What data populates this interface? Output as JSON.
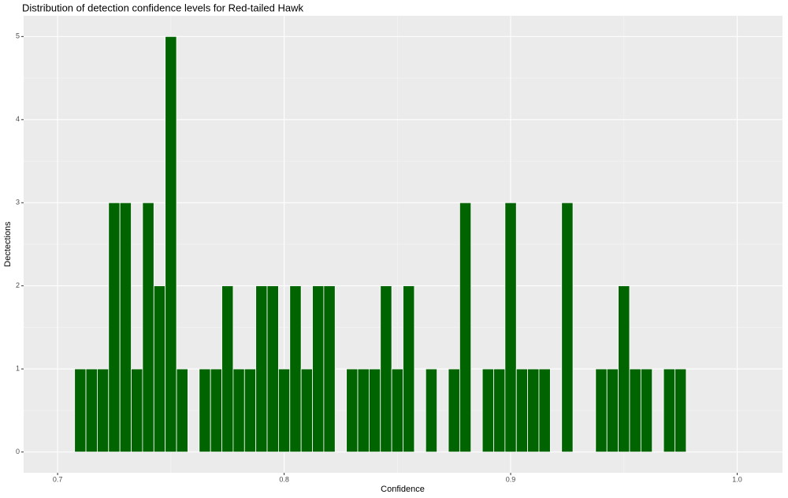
{
  "chart_data": {
    "type": "histogram",
    "title": "Distribution of detection confidence levels for Red-tailed Hawk",
    "x_label": "Confidence",
    "y_label": "Dectections",
    "bins": [
      0.7075,
      0.7125,
      0.7175,
      0.7225,
      0.7275,
      0.7325,
      0.7375,
      0.7425,
      0.7475,
      0.7525,
      0.7575,
      0.7625,
      0.7675,
      0.7725,
      0.7775,
      0.7825,
      0.7875,
      0.7925,
      0.7975,
      0.8025,
      0.8075,
      0.8125,
      0.8175,
      0.8225,
      0.8275,
      0.8325,
      0.8375,
      0.8425,
      0.8475,
      0.8525,
      0.8575,
      0.8625,
      0.8675,
      0.8725,
      0.8775,
      0.8825,
      0.8875,
      0.8925,
      0.8975,
      0.9025,
      0.9075,
      0.9125,
      0.9175,
      0.9225,
      0.9275,
      0.9325,
      0.9375,
      0.9425,
      0.9475,
      0.9525,
      0.9575,
      0.9625,
      0.9675,
      0.9725,
      0.9775
    ],
    "values": [
      1,
      1,
      1,
      3,
      3,
      1,
      3,
      2,
      5,
      1,
      0,
      1,
      1,
      2,
      1,
      1,
      2,
      2,
      1,
      2,
      1,
      2,
      2,
      0,
      1,
      1,
      1,
      2,
      1,
      2,
      0,
      1,
      0,
      1,
      3,
      0,
      1,
      1,
      3,
      1,
      1,
      1,
      0,
      3,
      0,
      0,
      1,
      1,
      2,
      1,
      1,
      0,
      1,
      1
    ],
    "color": "#006400",
    "xlim": [
      0.685,
      1.02
    ],
    "ylim": [
      -0.25,
      5.25
    ],
    "xticks": [
      0.7,
      0.8,
      0.9,
      {
        "value": 1,
        "label": "1.0"
      }
    ],
    "yticks": [
      0,
      1,
      2,
      3,
      4,
      5
    ],
    "grid": true
  }
}
